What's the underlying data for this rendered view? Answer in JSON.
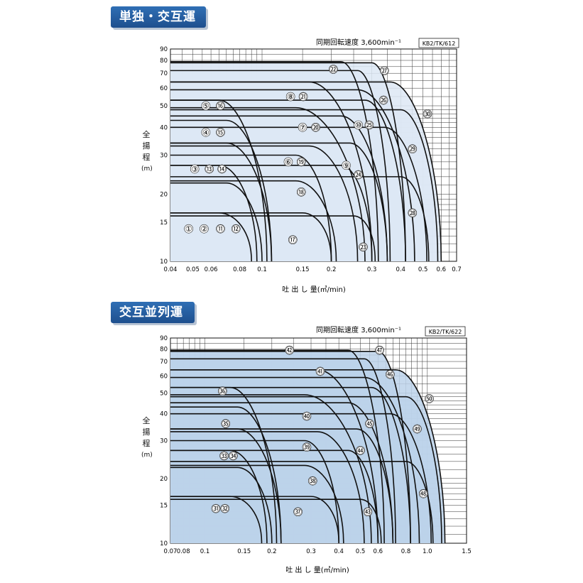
{
  "chart_data": [
    {
      "type": "area",
      "section_title": "単独・交互運転",
      "speed_note": "同期回転速度 3,600min⁻¹",
      "model_code": "KB2/TK/612",
      "xlabel": "吐 出 し 量(㎥/min)",
      "ylabel_chars": [
        "全",
        "揚",
        "程",
        "(m)"
      ],
      "x_scale": "log",
      "y_scale": "log",
      "xlim": [
        0.04,
        0.7
      ],
      "ylim": [
        10,
        90
      ],
      "x_ticks": [
        {
          "v": 0.04,
          "label": "0.04"
        },
        {
          "v": 0.05,
          "label": "0.05"
        },
        {
          "v": 0.06,
          "label": "0.06"
        },
        {
          "v": 0.08,
          "label": "0.08"
        },
        {
          "v": 0.1,
          "label": "0.1"
        },
        {
          "v": 0.15,
          "label": "0.15"
        },
        {
          "v": 0.2,
          "label": "0.2"
        },
        {
          "v": 0.3,
          "label": "0.3"
        },
        {
          "v": 0.4,
          "label": "0.4"
        },
        {
          "v": 0.5,
          "label": "0.5"
        },
        {
          "v": 0.6,
          "label": "0.6"
        },
        {
          "v": 0.7,
          "label": "0.7"
        }
      ],
      "y_ticks": [
        {
          "v": 10,
          "label": "10"
        },
        {
          "v": 15,
          "label": "15"
        },
        {
          "v": 20,
          "label": "20"
        },
        {
          "v": 30,
          "label": "30"
        },
        {
          "v": 40,
          "label": "40"
        },
        {
          "v": 50,
          "label": "50"
        },
        {
          "v": 60,
          "label": "60"
        },
        {
          "v": 70,
          "label": "70"
        },
        {
          "v": 80,
          "label": "80"
        },
        {
          "v": 90,
          "label": "90"
        }
      ],
      "grid": true,
      "fill_color": "#dde8f5",
      "curves": [
        {
          "h": 16.5,
          "qf": 0.065,
          "qe": 0.09
        },
        {
          "h": 22.5,
          "qf": 0.07,
          "qe": 0.1
        },
        {
          "h": 27,
          "qf": 0.065,
          "qe": 0.095
        },
        {
          "h": 34,
          "qf": 0.07,
          "qe": 0.11
        },
        {
          "h": 43,
          "qf": 0.07,
          "qe": 0.11
        },
        {
          "h": 53,
          "qf": 0.065,
          "qe": 0.105
        },
        {
          "h": 16.5,
          "qf": 0.15,
          "qe": 0.2
        },
        {
          "h": 23,
          "qf": 0.14,
          "qe": 0.21
        },
        {
          "h": 30,
          "qf": 0.14,
          "qe": 0.2
        },
        {
          "h": 33,
          "qf": 0.16,
          "qe": 0.26
        },
        {
          "h": 49,
          "qf": 0.14,
          "qe": 0.28
        },
        {
          "h": 64,
          "qf": 0.16,
          "qe": 0.3
        },
        {
          "h": 16,
          "qf": 0.25,
          "qe": 0.31
        },
        {
          "h": 27,
          "qf": 0.22,
          "qe": 0.3
        },
        {
          "h": 34,
          "qf": 0.24,
          "qe": 0.35
        },
        {
          "h": 45,
          "qf": 0.22,
          "qe": 0.35
        },
        {
          "h": 53,
          "qf": 0.28,
          "qe": 0.42
        },
        {
          "h": 59,
          "qf": 0.26,
          "qe": 0.46
        },
        {
          "h": 79,
          "qf": 0.22,
          "qe": 0.32
        },
        {
          "h": 72,
          "qf": 0.26,
          "qe": 0.36
        },
        {
          "h": 78,
          "qf": 0.3,
          "qe": 0.42
        },
        {
          "h": 24,
          "qf": 0.4,
          "qe": 0.53
        },
        {
          "h": 40,
          "qf": 0.34,
          "qe": 0.52
        },
        {
          "h": 48,
          "qf": 0.4,
          "qe": 0.58
        },
        {
          "h": 64,
          "qf": 0.36,
          "qe": 0.6
        }
      ],
      "markers": [
        {
          "n": "①",
          "q": 0.048,
          "h": 14
        },
        {
          "n": "②",
          "q": 0.056,
          "h": 14
        },
        {
          "n": "⑪",
          "q": 0.066,
          "h": 14
        },
        {
          "n": "⑫",
          "q": 0.077,
          "h": 14
        },
        {
          "n": "③",
          "q": 0.051,
          "h": 26
        },
        {
          "n": "⑬",
          "q": 0.059,
          "h": 26
        },
        {
          "n": "⑭",
          "q": 0.067,
          "h": 26
        },
        {
          "n": "④",
          "q": 0.057,
          "h": 38
        },
        {
          "n": "⑮",
          "q": 0.066,
          "h": 38
        },
        {
          "n": "⑤",
          "q": 0.057,
          "h": 50
        },
        {
          "n": "⑯",
          "q": 0.066,
          "h": 50
        },
        {
          "n": "⑧",
          "q": 0.133,
          "h": 55
        },
        {
          "n": "㉑",
          "q": 0.151,
          "h": 55
        },
        {
          "n": "⑦",
          "q": 0.15,
          "h": 40
        },
        {
          "n": "⑳",
          "q": 0.171,
          "h": 40
        },
        {
          "n": "⑥",
          "q": 0.13,
          "h": 28
        },
        {
          "n": "⑲",
          "q": 0.148,
          "h": 28
        },
        {
          "n": "⑱",
          "q": 0.148,
          "h": 20.5
        },
        {
          "n": "⑰",
          "q": 0.136,
          "h": 12.5
        },
        {
          "n": "⑨",
          "q": 0.232,
          "h": 27
        },
        {
          "n": "㉔",
          "q": 0.262,
          "h": 24.5
        },
        {
          "n": "⑩",
          "q": 0.262,
          "h": 41
        },
        {
          "n": "㉕",
          "q": 0.292,
          "h": 41
        },
        {
          "n": "㉒",
          "q": 0.204,
          "h": 73
        },
        {
          "n": "㉗",
          "q": 0.34,
          "h": 72
        },
        {
          "n": "㉖",
          "q": 0.337,
          "h": 53
        },
        {
          "n": "㉚",
          "q": 0.523,
          "h": 46
        },
        {
          "n": "㉙",
          "q": 0.45,
          "h": 32
        },
        {
          "n": "㉘",
          "q": 0.45,
          "h": 16.5
        },
        {
          "n": "㉓",
          "q": 0.275,
          "h": 11.6
        }
      ]
    },
    {
      "type": "area",
      "section_title": "交互並列運転",
      "speed_note": "同期回転速度 3,600min⁻¹",
      "model_code": "KB2/TK/622",
      "xlabel": "吐 出 し 量(㎥/min)",
      "ylabel_chars": [
        "全",
        "揚",
        "程",
        "(m)"
      ],
      "x_scale": "log",
      "y_scale": "log",
      "xlim": [
        0.07,
        1.5
      ],
      "ylim": [
        10,
        90
      ],
      "x_ticks": [
        {
          "v": 0.07,
          "label": "0.07"
        },
        {
          "v": 0.08,
          "label": "0.08"
        },
        {
          "v": 0.1,
          "label": "0.1"
        },
        {
          "v": 0.15,
          "label": "0.15"
        },
        {
          "v": 0.2,
          "label": "0.2"
        },
        {
          "v": 0.3,
          "label": "0.3"
        },
        {
          "v": 0.4,
          "label": "0.4"
        },
        {
          "v": 0.5,
          "label": "0.5"
        },
        {
          "v": 0.6,
          "label": "0.6"
        },
        {
          "v": 0.8,
          "label": "0.8"
        },
        {
          "v": 1.0,
          "label": "1.0"
        },
        {
          "v": 1.5,
          "label": "1.5"
        }
      ],
      "y_ticks": [
        {
          "v": 10,
          "label": "10"
        },
        {
          "v": 15,
          "label": "15"
        },
        {
          "v": 20,
          "label": "20"
        },
        {
          "v": 30,
          "label": "30"
        },
        {
          "v": 40,
          "label": "40"
        },
        {
          "v": 50,
          "label": "50"
        },
        {
          "v": 60,
          "label": "60"
        },
        {
          "v": 70,
          "label": "70"
        },
        {
          "v": 80,
          "label": "80"
        },
        {
          "v": 90,
          "label": "90"
        }
      ],
      "grid": true,
      "fill_color": "#bcd2ea",
      "curves": [
        {
          "h": 16.5,
          "qf": 0.13,
          "qe": 0.18
        },
        {
          "h": 22.5,
          "qf": 0.14,
          "qe": 0.2
        },
        {
          "h": 27,
          "qf": 0.13,
          "qe": 0.19
        },
        {
          "h": 34,
          "qf": 0.14,
          "qe": 0.22
        },
        {
          "h": 43,
          "qf": 0.14,
          "qe": 0.22
        },
        {
          "h": 53,
          "qf": 0.13,
          "qe": 0.21
        },
        {
          "h": 16.5,
          "qf": 0.3,
          "qe": 0.4
        },
        {
          "h": 23,
          "qf": 0.28,
          "qe": 0.42
        },
        {
          "h": 30,
          "qf": 0.28,
          "qe": 0.4
        },
        {
          "h": 33,
          "qf": 0.32,
          "qe": 0.52
        },
        {
          "h": 49,
          "qf": 0.28,
          "qe": 0.56
        },
        {
          "h": 64,
          "qf": 0.32,
          "qe": 0.6
        },
        {
          "h": 16,
          "qf": 0.5,
          "qe": 0.62
        },
        {
          "h": 27,
          "qf": 0.44,
          "qe": 0.6
        },
        {
          "h": 34,
          "qf": 0.48,
          "qe": 0.7
        },
        {
          "h": 45,
          "qf": 0.44,
          "qe": 0.7
        },
        {
          "h": 53,
          "qf": 0.56,
          "qe": 0.84
        },
        {
          "h": 59,
          "qf": 0.52,
          "qe": 0.92
        },
        {
          "h": 79,
          "qf": 0.44,
          "qe": 0.64
        },
        {
          "h": 72,
          "qf": 0.52,
          "qe": 0.72
        },
        {
          "h": 78,
          "qf": 0.6,
          "qe": 0.84
        },
        {
          "h": 24,
          "qf": 0.8,
          "qe": 1.06
        },
        {
          "h": 40,
          "qf": 0.68,
          "qe": 1.04
        },
        {
          "h": 48,
          "qf": 0.8,
          "qe": 1.16
        },
        {
          "h": 64,
          "qf": 0.72,
          "qe": 1.2
        }
      ],
      "markers": [
        {
          "n": "㉛",
          "q": 0.112,
          "h": 14.5
        },
        {
          "n": "㉜",
          "q": 0.123,
          "h": 14.5
        },
        {
          "n": "㉝",
          "q": 0.122,
          "h": 25.5
        },
        {
          "n": "㉞",
          "q": 0.134,
          "h": 25.5
        },
        {
          "n": "㉟",
          "q": 0.124,
          "h": 36
        },
        {
          "n": "㊱",
          "q": 0.12,
          "h": 51
        },
        {
          "n": "㊲",
          "q": 0.262,
          "h": 14
        },
        {
          "n": "㊳",
          "q": 0.305,
          "h": 19.5
        },
        {
          "n": "㊴",
          "q": 0.287,
          "h": 28
        },
        {
          "n": "㊵",
          "q": 0.287,
          "h": 39
        },
        {
          "n": "㊶",
          "q": 0.33,
          "h": 63
        },
        {
          "n": "㊷",
          "q": 0.24,
          "h": 79
        },
        {
          "n": "㊸",
          "q": 0.54,
          "h": 14
        },
        {
          "n": "㊹",
          "q": 0.5,
          "h": 27
        },
        {
          "n": "㊺",
          "q": 0.55,
          "h": 36
        },
        {
          "n": "㊻",
          "q": 0.68,
          "h": 61
        },
        {
          "n": "㊼",
          "q": 0.61,
          "h": 79
        },
        {
          "n": "㊽",
          "q": 0.96,
          "h": 17
        },
        {
          "n": "㊾",
          "q": 0.9,
          "h": 34
        },
        {
          "n": "㊿",
          "q": 1.02,
          "h": 47
        }
      ]
    }
  ]
}
